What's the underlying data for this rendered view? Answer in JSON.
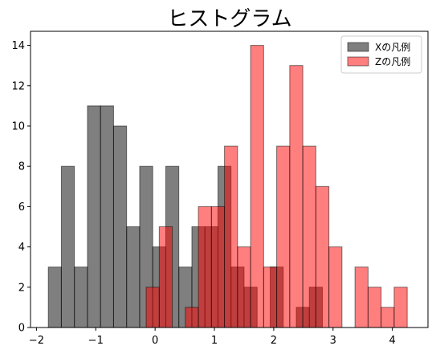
{
  "chart_data": {
    "type": "bar",
    "title": "ヒストグラム",
    "xlabel": "",
    "ylabel": "",
    "xlim": [
      -2.1,
      4.6
    ],
    "ylim": [
      0,
      14.7
    ],
    "xticks": [
      -2,
      -1,
      0,
      1,
      2,
      3,
      4
    ],
    "yticks": [
      0,
      2,
      4,
      6,
      8,
      10,
      12,
      14
    ],
    "legend": {
      "position": "top-right"
    },
    "series": [
      {
        "name": "Xの凡例",
        "color": "#000000",
        "opacity": 0.5,
        "bins": [
          {
            "x0": -1.8,
            "x1": -1.58,
            "count": 3
          },
          {
            "x0": -1.58,
            "x1": -1.36,
            "count": 8
          },
          {
            "x0": -1.36,
            "x1": -1.14,
            "count": 3
          },
          {
            "x0": -1.14,
            "x1": -0.92,
            "count": 11
          },
          {
            "x0": -0.92,
            "x1": -0.7,
            "count": 11
          },
          {
            "x0": -0.7,
            "x1": -0.48,
            "count": 10
          },
          {
            "x0": -0.48,
            "x1": -0.26,
            "count": 5
          },
          {
            "x0": -0.26,
            "x1": -0.04,
            "count": 8
          },
          {
            "x0": -0.04,
            "x1": 0.18,
            "count": 4
          },
          {
            "x0": 0.18,
            "x1": 0.4,
            "count": 8
          },
          {
            "x0": 0.4,
            "x1": 0.62,
            "count": 3
          },
          {
            "x0": 0.62,
            "x1": 0.84,
            "count": 5
          },
          {
            "x0": 0.84,
            "x1": 1.06,
            "count": 5
          },
          {
            "x0": 1.06,
            "x1": 1.28,
            "count": 8
          },
          {
            "x0": 1.28,
            "x1": 1.5,
            "count": 3
          },
          {
            "x0": 1.5,
            "x1": 1.72,
            "count": 2
          },
          {
            "x0": 1.72,
            "x1": 1.94,
            "count": 0
          },
          {
            "x0": 1.94,
            "x1": 2.16,
            "count": 3
          },
          {
            "x0": 2.16,
            "x1": 2.38,
            "count": 0
          },
          {
            "x0": 2.38,
            "x1": 2.6,
            "count": 1
          },
          {
            "x0": 2.6,
            "x1": 2.82,
            "count": 2
          }
        ]
      },
      {
        "name": "Zの凡例",
        "color": "#ff0000",
        "opacity": 0.5,
        "bins": [
          {
            "x0": -0.15,
            "x1": 0.07,
            "count": 2
          },
          {
            "x0": 0.07,
            "x1": 0.29,
            "count": 5
          },
          {
            "x0": 0.29,
            "x1": 0.51,
            "count": 0
          },
          {
            "x0": 0.51,
            "x1": 0.73,
            "count": 1
          },
          {
            "x0": 0.73,
            "x1": 0.95,
            "count": 6
          },
          {
            "x0": 0.95,
            "x1": 1.17,
            "count": 6
          },
          {
            "x0": 1.17,
            "x1": 1.39,
            "count": 9
          },
          {
            "x0": 1.39,
            "x1": 1.61,
            "count": 4
          },
          {
            "x0": 1.61,
            "x1": 1.83,
            "count": 14
          },
          {
            "x0": 1.83,
            "x1": 2.05,
            "count": 3
          },
          {
            "x0": 2.05,
            "x1": 2.27,
            "count": 9
          },
          {
            "x0": 2.27,
            "x1": 2.49,
            "count": 13
          },
          {
            "x0": 2.49,
            "x1": 2.71,
            "count": 9
          },
          {
            "x0": 2.71,
            "x1": 2.93,
            "count": 7
          },
          {
            "x0": 2.93,
            "x1": 3.15,
            "count": 4
          },
          {
            "x0": 3.15,
            "x1": 3.37,
            "count": 0
          },
          {
            "x0": 3.37,
            "x1": 3.59,
            "count": 3
          },
          {
            "x0": 3.59,
            "x1": 3.81,
            "count": 2
          },
          {
            "x0": 3.81,
            "x1": 4.03,
            "count": 1
          },
          {
            "x0": 4.03,
            "x1": 4.25,
            "count": 2
          }
        ]
      }
    ]
  }
}
